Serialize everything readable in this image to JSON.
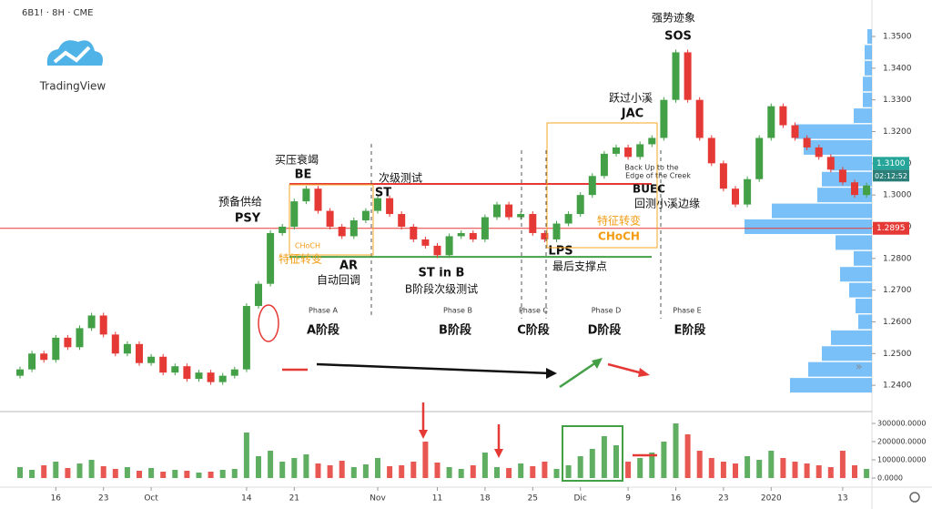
{
  "logo_text": "TradingView",
  "chart_data": [
    {
      "type": "candlestick",
      "title": "6B1! · 8H · CME",
      "categories": [
        null,
        null,
        null,
        "16",
        null,
        null,
        null,
        "23",
        null,
        null,
        null,
        "Oct",
        null,
        null,
        null,
        null,
        null,
        null,
        null,
        "14",
        null,
        null,
        null,
        "21",
        null,
        null,
        null,
        null,
        null,
        null,
        "Nov",
        null,
        null,
        null,
        null,
        "11",
        null,
        null,
        null,
        "18",
        null,
        null,
        null,
        "25",
        null,
        null,
        null,
        "Dic",
        null,
        null,
        null,
        "9",
        null,
        null,
        null,
        "16",
        null,
        null,
        null,
        "23",
        null,
        null,
        null,
        "2020",
        null,
        null,
        null,
        null,
        null,
        "13",
        null,
        null
      ],
      "open": [
        1.243,
        1.245,
        1.25,
        1.248,
        1.255,
        1.252,
        1.258,
        1.262,
        1.256,
        1.25,
        1.253,
        1.247,
        1.249,
        1.244,
        1.246,
        1.242,
        1.244,
        1.241,
        1.243,
        1.245,
        1.265,
        1.272,
        1.288,
        1.29,
        1.298,
        1.302,
        1.295,
        1.29,
        1.287,
        1.292,
        1.295,
        1.299,
        1.294,
        1.29,
        1.286,
        1.284,
        1.281,
        1.287,
        1.288,
        1.286,
        1.293,
        1.297,
        1.293,
        1.294,
        1.288,
        1.286,
        1.291,
        1.294,
        1.3,
        1.306,
        1.313,
        1.315,
        1.312,
        1.316,
        1.318,
        1.33,
        1.345,
        1.33,
        1.318,
        1.31,
        1.302,
        1.297,
        1.305,
        1.318,
        1.328,
        1.322,
        1.318,
        1.315,
        1.312,
        1.308,
        1.304,
        1.3
      ],
      "close": [
        1.245,
        1.25,
        1.248,
        1.255,
        1.252,
        1.258,
        1.262,
        1.256,
        1.25,
        1.253,
        1.247,
        1.249,
        1.244,
        1.246,
        1.242,
        1.244,
        1.241,
        1.243,
        1.245,
        1.265,
        1.272,
        1.288,
        1.29,
        1.298,
        1.302,
        1.295,
        1.29,
        1.287,
        1.292,
        1.295,
        1.299,
        1.294,
        1.29,
        1.286,
        1.284,
        1.281,
        1.287,
        1.288,
        1.286,
        1.293,
        1.297,
        1.293,
        1.294,
        1.288,
        1.286,
        1.291,
        1.294,
        1.3,
        1.306,
        1.313,
        1.315,
        1.312,
        1.316,
        1.318,
        1.33,
        1.345,
        1.33,
        1.318,
        1.31,
        1.302,
        1.297,
        1.305,
        1.318,
        1.328,
        1.322,
        1.318,
        1.315,
        1.312,
        1.308,
        1.304,
        1.3,
        1.303
      ],
      "up_color": "#43a047",
      "down_color": "#e53935",
      "ylim": [
        1.2317,
        1.3615
      ],
      "yticks": [
        {
          "value": 1.24,
          "label": "1.2400"
        },
        {
          "value": 1.25,
          "label": "1.2500"
        },
        {
          "value": 1.26,
          "label": "1.2600"
        },
        {
          "value": 1.27,
          "label": "1.2700"
        },
        {
          "value": 1.28,
          "label": "1.2800"
        },
        {
          "value": 1.29,
          "label": "1.2900"
        },
        {
          "value": 1.3,
          "label": "1.3000"
        },
        {
          "value": 1.31,
          "label": "1.3100"
        },
        {
          "value": 1.32,
          "label": "1.3200"
        },
        {
          "value": 1.33,
          "label": "1.3300"
        },
        {
          "value": 1.34,
          "label": "1.3400"
        },
        {
          "value": 1.35,
          "label": "1.3500"
        }
      ],
      "levels": [
        {
          "value": 1.3035,
          "color": "#e53935"
        },
        {
          "value": 1.2805,
          "color": "#43a047"
        }
      ],
      "price_labels": [
        {
          "value": 1.2895,
          "label": "1.2895",
          "color": "#e53935"
        },
        {
          "value": 1.31,
          "label": "1.3100",
          "color": "#26a69a"
        }
      ],
      "countdown": "02:12:52",
      "volume_profile": {
        "color": "#2196f3",
        "prices": [
          1.24,
          1.245,
          1.25,
          1.255,
          1.26,
          1.265,
          1.27,
          1.275,
          1.28,
          1.285,
          1.29,
          1.295,
          1.3,
          1.305,
          1.31,
          1.315,
          1.32,
          1.325,
          1.33,
          1.335,
          1.34,
          1.345,
          1.35
        ],
        "values": [
          90,
          70,
          55,
          45,
          15,
          18,
          25,
          35,
          20,
          40,
          140,
          110,
          60,
          55,
          45,
          75,
          85,
          20,
          10,
          10,
          8,
          8,
          5
        ]
      },
      "annotations": [
        "强势迹象",
        "SOS",
        "跃过小溪",
        "JAC",
        "Back Up to the",
        "Edge of the Creek",
        "BUEC",
        "回测小溪边缘",
        "买压衰竭",
        "BE",
        "次级测试",
        "ST",
        "预备供给",
        "PSY",
        "CHoCH",
        "特征转变",
        "AR",
        "自动回调",
        "ST in B",
        "B阶段次级测试",
        "LPS",
        "最后支撑点",
        "特征转变",
        "CHoCH",
        "Phase A",
        "A阶段",
        "Phase B",
        "B阶段",
        "Phase C",
        "C阶段",
        "Phase D",
        "D阶段",
        "Phase E",
        "E阶段"
      ]
    },
    {
      "type": "bar",
      "values": [
        60000,
        45000,
        70000,
        90000,
        55000,
        80000,
        100000,
        65000,
        50000,
        60000,
        40000,
        55000,
        35000,
        45000,
        40000,
        30000,
        35000,
        45000,
        50000,
        250000,
        120000,
        150000,
        90000,
        110000,
        130000,
        80000,
        70000,
        95000,
        60000,
        75000,
        110000,
        65000,
        70000,
        90000,
        200000,
        85000,
        60000,
        50000,
        70000,
        140000,
        60000,
        55000,
        80000,
        65000,
        90000,
        50000,
        70000,
        120000,
        160000,
        230000,
        180000,
        90000,
        110000,
        140000,
        200000,
        300000,
        240000,
        150000,
        110000,
        90000,
        80000,
        120000,
        100000,
        150000,
        110000,
        90000,
        80000,
        70000,
        60000,
        150000,
        70000,
        50000
      ],
      "ylim": [
        -50000,
        365000
      ],
      "yticks": [
        {
          "value": 0,
          "label": "0.0000"
        },
        {
          "value": 100000,
          "label": "100000.0000"
        },
        {
          "value": 200000,
          "label": "200000.0000"
        },
        {
          "value": 300000,
          "label": "300000.0000"
        }
      ]
    }
  ]
}
